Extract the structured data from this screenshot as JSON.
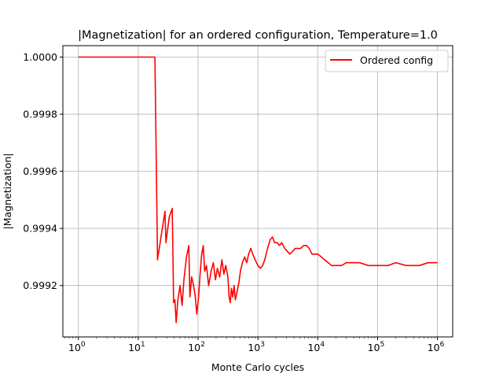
{
  "chart_data": {
    "type": "line",
    "title": "|Magnetization| for an ordered configuration, Temperature=1.0",
    "xlabel": "Monte Carlo cycles",
    "ylabel": "|Magnetization|",
    "x_scale": "log",
    "xlim": [
      0.55,
      1800000
    ],
    "ylim": [
      0.99902,
      1.00004
    ],
    "x_ticks": [
      {
        "value": 1,
        "base": "10",
        "exp": "0"
      },
      {
        "value": 10,
        "base": "10",
        "exp": "1"
      },
      {
        "value": 100,
        "base": "10",
        "exp": "2"
      },
      {
        "value": 1000,
        "base": "10",
        "exp": "3"
      },
      {
        "value": 10000,
        "base": "10",
        "exp": "4"
      },
      {
        "value": 100000,
        "base": "10",
        "exp": "5"
      },
      {
        "value": 1000000,
        "base": "10",
        "exp": "6"
      }
    ],
    "y_ticks": [
      {
        "value": 0.9992,
        "label": "0.9992"
      },
      {
        "value": 0.9994,
        "label": "0.9994"
      },
      {
        "value": 0.9996,
        "label": "0.9996"
      },
      {
        "value": 0.9998,
        "label": "0.9998"
      },
      {
        "value": 1.0,
        "label": "1.0000"
      }
    ],
    "grid": true,
    "legend_position": "top-right",
    "colors": {
      "series": "#ff0000",
      "grid": "#b0b0b0",
      "axes": "#000000"
    },
    "series": [
      {
        "name": "Ordered config",
        "color": "#ff0000",
        "points": [
          [
            1,
            1.0
          ],
          [
            19,
            1.0
          ],
          [
            21,
            0.99929
          ],
          [
            24,
            0.99937
          ],
          [
            28,
            0.99946
          ],
          [
            29,
            0.99935
          ],
          [
            33,
            0.99944
          ],
          [
            37,
            0.99947
          ],
          [
            39,
            0.99914
          ],
          [
            41,
            0.99915
          ],
          [
            43,
            0.99907
          ],
          [
            46,
            0.99915
          ],
          [
            50,
            0.9992
          ],
          [
            54,
            0.99913
          ],
          [
            58,
            0.99922
          ],
          [
            64,
            0.9993
          ],
          [
            70,
            0.99934
          ],
          [
            73,
            0.99916
          ],
          [
            78,
            0.99923
          ],
          [
            84,
            0.9992
          ],
          [
            90,
            0.99916
          ],
          [
            95,
            0.9991
          ],
          [
            102,
            0.99916
          ],
          [
            108,
            0.99924
          ],
          [
            115,
            0.99931
          ],
          [
            122,
            0.99934
          ],
          [
            129,
            0.99925
          ],
          [
            138,
            0.99927
          ],
          [
            150,
            0.9992
          ],
          [
            165,
            0.99925
          ],
          [
            180,
            0.99928
          ],
          [
            195,
            0.99922
          ],
          [
            210,
            0.99926
          ],
          [
            230,
            0.99923
          ],
          [
            250,
            0.99929
          ],
          [
            270,
            0.99924
          ],
          [
            290,
            0.99927
          ],
          [
            315,
            0.99923
          ],
          [
            330,
            0.99916
          ],
          [
            345,
            0.99914
          ],
          [
            360,
            0.99919
          ],
          [
            380,
            0.99916
          ],
          [
            400,
            0.9992
          ],
          [
            420,
            0.99915
          ],
          [
            450,
            0.99918
          ],
          [
            480,
            0.99921
          ],
          [
            510,
            0.99925
          ],
          [
            550,
            0.99928
          ],
          [
            600,
            0.9993
          ],
          [
            650,
            0.99928
          ],
          [
            700,
            0.99931
          ],
          [
            760,
            0.99933
          ],
          [
            820,
            0.99931
          ],
          [
            900,
            0.99929
          ],
          [
            1000,
            0.99927
          ],
          [
            1100,
            0.99926
          ],
          [
            1200,
            0.99927
          ],
          [
            1300,
            0.99929
          ],
          [
            1450,
            0.99933
          ],
          [
            1600,
            0.99936
          ],
          [
            1750,
            0.99937
          ],
          [
            1900,
            0.99935
          ],
          [
            2100,
            0.99935
          ],
          [
            2300,
            0.99934
          ],
          [
            2500,
            0.99935
          ],
          [
            2800,
            0.99933
          ],
          [
            3100,
            0.99932
          ],
          [
            3400,
            0.99931
          ],
          [
            3800,
            0.99932
          ],
          [
            4200,
            0.99933
          ],
          [
            4700,
            0.99933
          ],
          [
            5200,
            0.99933
          ],
          [
            5800,
            0.99934
          ],
          [
            6500,
            0.99934
          ],
          [
            7200,
            0.99933
          ],
          [
            8000,
            0.99931
          ],
          [
            9000,
            0.99931
          ],
          [
            10000,
            0.99931
          ],
          [
            11500,
            0.9993
          ],
          [
            13000,
            0.99929
          ],
          [
            15000,
            0.99928
          ],
          [
            17000,
            0.99927
          ],
          [
            20000,
            0.99927
          ],
          [
            25000,
            0.99927
          ],
          [
            30000,
            0.99928
          ],
          [
            40000,
            0.99928
          ],
          [
            50000,
            0.99928
          ],
          [
            70000,
            0.99927
          ],
          [
            100000,
            0.99927
          ],
          [
            150000,
            0.99927
          ],
          [
            200000,
            0.99928
          ],
          [
            300000,
            0.99927
          ],
          [
            400000,
            0.99927
          ],
          [
            500000,
            0.99927
          ],
          [
            700000,
            0.99928
          ],
          [
            1000000,
            0.99928
          ]
        ]
      }
    ]
  }
}
